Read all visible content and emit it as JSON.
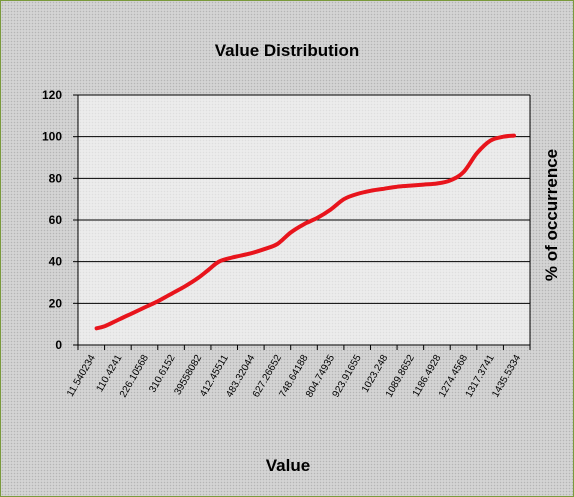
{
  "chart_data": {
    "type": "line",
    "title": "Value Distribution",
    "xlabel": "Value",
    "ylabel": "% of occurrence",
    "ylim": [
      0,
      120
    ],
    "yticks": [
      "0",
      "20",
      "40",
      "60",
      "80",
      "100",
      "120"
    ],
    "x_tick_labels": [
      "11.540234",
      "110.4241",
      "226.10568",
      "310.6152",
      "39558082",
      "412.45511",
      "483.32044",
      "627.26652",
      "748.64188",
      "804.74935",
      "923.91655",
      "1023.248",
      "1089.8652",
      "1186.4928",
      "1274.4568",
      "1317.3741",
      "1435.5334"
    ],
    "grid": true,
    "legend": "none",
    "series": [
      {
        "color": "#e8141c",
        "points": [
          [
            0.2,
            8
          ],
          [
            0.5,
            9
          ],
          [
            1,
            12
          ],
          [
            1.5,
            15
          ],
          [
            2,
            18
          ],
          [
            2.5,
            21
          ],
          [
            3,
            24.5
          ],
          [
            3.5,
            28
          ],
          [
            4,
            32
          ],
          [
            4.4,
            36
          ],
          [
            4.8,
            40
          ],
          [
            5.3,
            42
          ],
          [
            6,
            44
          ],
          [
            6.5,
            46
          ],
          [
            7,
            48.5
          ],
          [
            7.5,
            54
          ],
          [
            8,
            58
          ],
          [
            8.5,
            61
          ],
          [
            9,
            65
          ],
          [
            9.5,
            70
          ],
          [
            10,
            72.5
          ],
          [
            10.5,
            74
          ],
          [
            11,
            75
          ],
          [
            11.5,
            76
          ],
          [
            12,
            76.5
          ],
          [
            12.5,
            77
          ],
          [
            13,
            77.5
          ],
          [
            13.5,
            79
          ],
          [
            14,
            83
          ],
          [
            14.5,
            92
          ],
          [
            15,
            98
          ],
          [
            15.5,
            100
          ],
          [
            15.9,
            100.5
          ]
        ]
      }
    ]
  }
}
